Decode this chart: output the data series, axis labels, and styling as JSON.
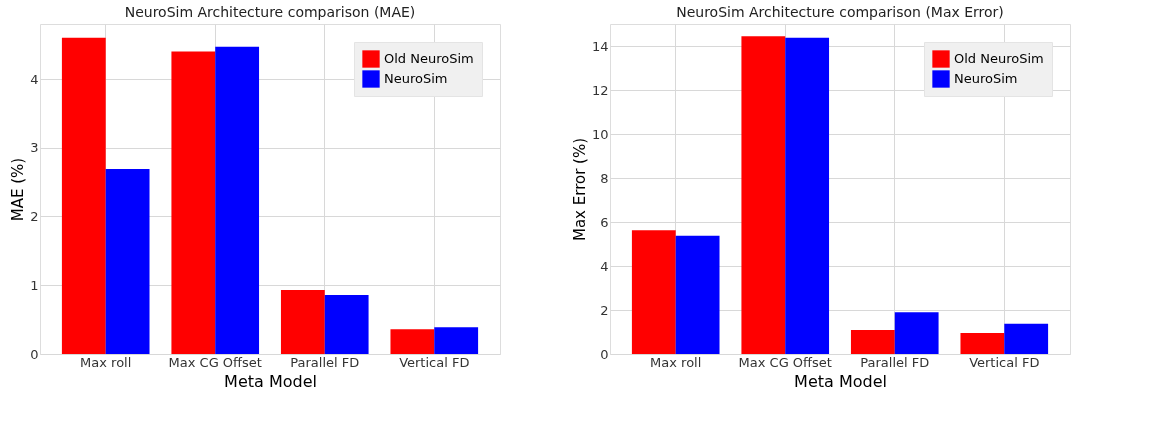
{
  "chart_data": [
    {
      "type": "bar",
      "title": "NeuroSim Architecture comparison (MAE)",
      "xlabel": "Meta Model",
      "ylabel": "MAE (%)",
      "categories": [
        "Max roll",
        "Max CG Offset",
        "Parallel FD",
        "Vertical FD"
      ],
      "series": [
        {
          "name": "Old NeuroSim",
          "color": "#ff0000",
          "values": [
            4.6,
            4.4,
            0.93,
            0.36
          ]
        },
        {
          "name": "NeuroSim",
          "color": "#0000ff",
          "values": [
            2.69,
            4.47,
            0.86,
            0.39
          ]
        }
      ],
      "ylim": [
        0,
        4.8
      ],
      "yticks": [
        0,
        1,
        2,
        3,
        4
      ],
      "grid": true,
      "legend": "top right"
    },
    {
      "type": "bar",
      "title": "NeuroSim Architecture comparison (Max Error)",
      "xlabel": "Meta Model",
      "ylabel": "Max Error (%)",
      "categories": [
        "Max roll",
        "Max CG Offset",
        "Parallel FD",
        "Vertical FD"
      ],
      "series": [
        {
          "name": "Old NeuroSim",
          "color": "#ff0000",
          "values": [
            5.63,
            14.44,
            1.09,
            0.96
          ]
        },
        {
          "name": "NeuroSim",
          "color": "#0000ff",
          "values": [
            5.38,
            14.37,
            1.9,
            1.38
          ]
        }
      ],
      "ylim": [
        0,
        15
      ],
      "yticks": [
        0,
        2,
        4,
        6,
        8,
        10,
        12,
        14
      ],
      "grid": true,
      "legend": "top right"
    }
  ]
}
